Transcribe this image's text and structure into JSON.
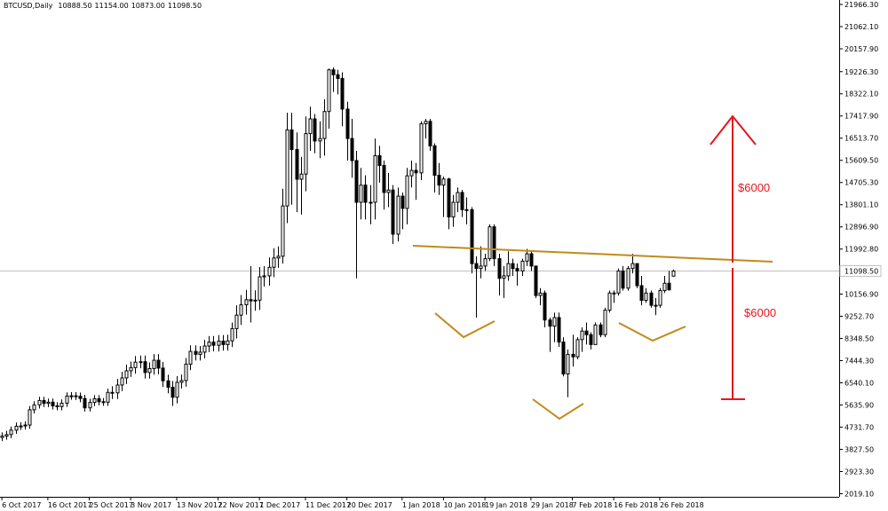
{
  "chart_data": {
    "type": "candlestick",
    "title": "BTCUSD,Daily",
    "last_bar_labels": [
      "10888.50",
      "11154.00",
      "10873.00",
      "11098.50"
    ],
    "ohlc": [
      [
        4220,
        4460,
        4070,
        4310
      ],
      [
        4310,
        4520,
        4160,
        4370
      ],
      [
        4370,
        4580,
        4220,
        4430
      ],
      [
        4430,
        4760,
        4280,
        4610
      ],
      [
        4610,
        4920,
        4460,
        4770
      ],
      [
        4770,
        4930,
        4620,
        4780
      ],
      [
        4780,
        4970,
        4630,
        4820
      ],
      [
        4820,
        5590,
        4670,
        5440
      ],
      [
        5440,
        5790,
        5290,
        5640
      ],
      [
        5640,
        5970,
        5490,
        5820
      ],
      [
        5820,
        5970,
        5550,
        5700
      ],
      [
        5700,
        5900,
        5550,
        5750
      ],
      [
        5750,
        5900,
        5450,
        5600
      ],
      [
        5600,
        5750,
        5420,
        5570
      ],
      [
        5570,
        5860,
        5420,
        5710
      ],
      [
        5710,
        6150,
        5560,
        6000
      ],
      [
        6000,
        6160,
        5850,
        6010
      ],
      [
        6010,
        6160,
        5840,
        5990
      ],
      [
        5990,
        6140,
        5750,
        5900
      ],
      [
        5900,
        6050,
        5370,
        5520
      ],
      [
        5520,
        5890,
        5370,
        5740
      ],
      [
        5740,
        6040,
        5590,
        5890
      ],
      [
        5890,
        6040,
        5620,
        5770
      ],
      [
        5770,
        5920,
        5600,
        5750
      ],
      [
        5750,
        6300,
        5600,
        6150
      ],
      [
        6150,
        6400,
        5880,
        6130
      ],
      [
        6130,
        6700,
        5880,
        6450
      ],
      [
        6450,
        6990,
        6200,
        6740
      ],
      [
        6740,
        7280,
        6490,
        7030
      ],
      [
        7030,
        7410,
        6780,
        7160
      ],
      [
        7160,
        7630,
        6910,
        7380
      ],
      [
        7380,
        7650,
        7130,
        7400
      ],
      [
        7400,
        7650,
        6710,
        6960
      ],
      [
        6960,
        7370,
        6710,
        7120
      ],
      [
        7120,
        7710,
        6870,
        7460
      ],
      [
        7460,
        7710,
        6890,
        7140
      ],
      [
        7140,
        7390,
        6370,
        6620
      ],
      [
        6620,
        6870,
        6110,
        6360
      ],
      [
        6360,
        6610,
        5600,
        5950
      ],
      [
        5950,
        6810,
        5700,
        6560
      ],
      [
        6560,
        6880,
        6310,
        6630
      ],
      [
        6630,
        7550,
        6380,
        7300
      ],
      [
        7300,
        8070,
        7050,
        7820
      ],
      [
        7820,
        8070,
        7450,
        7700
      ],
      [
        7700,
        8040,
        7450,
        7790
      ],
      [
        7790,
        8290,
        7540,
        8040
      ],
      [
        8040,
        8450,
        7790,
        8200
      ],
      [
        8200,
        8450,
        7820,
        8070
      ],
      [
        8070,
        8490,
        7820,
        8240
      ],
      [
        8240,
        8490,
        7850,
        8100
      ],
      [
        8100,
        8500,
        7850,
        8250
      ],
      [
        8250,
        9000,
        8000,
        8750
      ],
      [
        8750,
        9700,
        8350,
        9300
      ],
      [
        9300,
        10120,
        8900,
        9720
      ],
      [
        9720,
        10330,
        9320,
        9930
      ],
      [
        9930,
        11300,
        9000,
        9880
      ],
      [
        9880,
        10310,
        9480,
        9910
      ],
      [
        9910,
        11260,
        9510,
        10860
      ],
      [
        10860,
        11300,
        10460,
        10900
      ],
      [
        10900,
        11650,
        10500,
        11250
      ],
      [
        11250,
        12030,
        10850,
        11630
      ],
      [
        11630,
        12100,
        11230,
        11700
      ],
      [
        11700,
        14450,
        11400,
        13750
      ],
      [
        13750,
        17550,
        13050,
        16850
      ],
      [
        16850,
        17550,
        13800,
        16050
      ],
      [
        16050,
        16750,
        13500,
        14840
      ],
      [
        14840,
        15750,
        13400,
        15050
      ],
      [
        15050,
        17400,
        14350,
        16700
      ],
      [
        16700,
        17800,
        16000,
        17300
      ],
      [
        17300,
        17500,
        15900,
        16400
      ],
      [
        16400,
        17200,
        15700,
        16500
      ],
      [
        16500,
        18100,
        15800,
        17600
      ],
      [
        17600,
        19350,
        16900,
        19300
      ],
      [
        19300,
        19400,
        18400,
        19100
      ],
      [
        19100,
        19300,
        18300,
        18950
      ],
      [
        18950,
        19200,
        17000,
        17700
      ],
      [
        17700,
        18000,
        15600,
        16500
      ],
      [
        16500,
        17300,
        14900,
        15600
      ],
      [
        15600,
        16000,
        10800,
        13900
      ],
      [
        13900,
        15300,
        13200,
        14600
      ],
      [
        14600,
        15000,
        13200,
        13900
      ],
      [
        13900,
        14600,
        13000,
        13900
      ],
      [
        13900,
        16500,
        13200,
        15800
      ],
      [
        15800,
        16200,
        14700,
        15400
      ],
      [
        15400,
        15600,
        13600,
        14300
      ],
      [
        14300,
        15100,
        13700,
        14400
      ],
      [
        14400,
        14600,
        12200,
        12600
      ],
      [
        12600,
        14500,
        12300,
        14150
      ],
      [
        14150,
        14300,
        12800,
        13650
      ],
      [
        13650,
        15300,
        13000,
        14980
      ],
      [
        14980,
        15600,
        14500,
        15200
      ],
      [
        15200,
        15500,
        14000,
        15100
      ],
      [
        15100,
        17200,
        14800,
        17100
      ],
      [
        17100,
        17300,
        16500,
        17200
      ],
      [
        17200,
        17300,
        16000,
        16200
      ],
      [
        16200,
        16300,
        14300,
        15000
      ],
      [
        15000,
        15500,
        14200,
        14600
      ],
      [
        14600,
        14950,
        13300,
        14850
      ],
      [
        14850,
        14900,
        12800,
        13300
      ],
      [
        13300,
        14200,
        12900,
        13900
      ],
      [
        13900,
        14500,
        13500,
        14300
      ],
      [
        14300,
        14400,
        13300,
        13600
      ],
      [
        13600,
        14100,
        13000,
        13600
      ],
      [
        13600,
        13700,
        11000,
        11400
      ],
      [
        11400,
        11700,
        9200,
        11200
      ],
      [
        11200,
        12100,
        10800,
        11300
      ],
      [
        11300,
        11800,
        11100,
        11600
      ],
      [
        11600,
        13000,
        11500,
        12900
      ],
      [
        12900,
        13000,
        11300,
        11600
      ],
      [
        11600,
        11800,
        10100,
        10800
      ],
      [
        10800,
        11300,
        10000,
        10900
      ],
      [
        10900,
        11900,
        10700,
        11400
      ],
      [
        11400,
        11600,
        10900,
        11200
      ],
      [
        11200,
        11400,
        10500,
        11100
      ],
      [
        11100,
        11600,
        10900,
        11500
      ],
      [
        11500,
        12000,
        11300,
        11800
      ],
      [
        11800,
        11900,
        11100,
        11300
      ],
      [
        11300,
        11300,
        10000,
        10100
      ],
      [
        10100,
        10400,
        9700,
        10200
      ],
      [
        10200,
        10300,
        8800,
        9100
      ],
      [
        9100,
        9200,
        7800,
        8850
      ],
      [
        8850,
        9400,
        8200,
        9200
      ],
      [
        9200,
        9400,
        8000,
        8200
      ],
      [
        8200,
        8400,
        6800,
        6900
      ],
      [
        6900,
        7900,
        5950,
        7700
      ],
      [
        7700,
        8500,
        7200,
        7600
      ],
      [
        7600,
        8400,
        7500,
        8300
      ],
      [
        8300,
        8800,
        7800,
        8650
      ],
      [
        8650,
        9000,
        8100,
        8500
      ],
      [
        8500,
        8600,
        7900,
        8100
      ],
      [
        8100,
        9000,
        8100,
        8900
      ],
      [
        8900,
        9000,
        8400,
        8500
      ],
      [
        8500,
        9600,
        8400,
        9500
      ],
      [
        9500,
        10300,
        9400,
        10200
      ],
      [
        10200,
        10300,
        9800,
        10200
      ],
      [
        10200,
        11200,
        10100,
        11100
      ],
      [
        11100,
        11300,
        10300,
        10400
      ],
      [
        10400,
        11300,
        10300,
        11200
      ],
      [
        11200,
        11800,
        11000,
        11400
      ],
      [
        11400,
        11400,
        10400,
        10500
      ],
      [
        10500,
        10900,
        9700,
        9900
      ],
      [
        9900,
        10400,
        9800,
        10200
      ],
      [
        10200,
        10300,
        9600,
        9700
      ],
      [
        9700,
        10000,
        9300,
        9700
      ],
      [
        9700,
        10400,
        9600,
        10300
      ],
      [
        10300,
        10900,
        10200,
        10600
      ],
      [
        10600,
        11100,
        10300,
        10330
      ],
      [
        10888.5,
        11154,
        10873,
        11098.5
      ]
    ],
    "xlim": [
      0.6,
      183
    ],
    "xticks": [
      {
        "value": 1,
        "label": "6 Oct 2017"
      },
      {
        "value": 11,
        "label": "16 Oct 2017"
      },
      {
        "value": 20,
        "label": "25 Oct 2017"
      },
      {
        "value": 29,
        "label": "3 Nov 2017"
      },
      {
        "value": 39,
        "label": "13 Nov 2017"
      },
      {
        "value": 48,
        "label": "22 Nov 2017"
      },
      {
        "value": 57,
        "label": "1 Dec 2017"
      },
      {
        "value": 67,
        "label": "11 Dec 2017"
      },
      {
        "value": 76,
        "label": "20 Dec 2017"
      },
      {
        "value": 88,
        "label": "1 Jan 2018"
      },
      {
        "value": 97,
        "label": "10 Jan 2018"
      },
      {
        "value": 106,
        "label": "19 Jan 2018"
      },
      {
        "value": 116,
        "label": "29 Jan 2018"
      },
      {
        "value": 125,
        "label": "7 Feb 2018"
      },
      {
        "value": 134,
        "label": "16 Feb 2018"
      },
      {
        "value": 144,
        "label": "26 Feb 2018"
      }
    ],
    "ylim": [
      1892,
      22147
    ],
    "yticks": [
      {
        "value": 21966.3,
        "label": "21966.30"
      },
      {
        "value": 21062.1,
        "label": "21062.10"
      },
      {
        "value": 20157.9,
        "label": "20157.90"
      },
      {
        "value": 19226.3,
        "label": "19226.30"
      },
      {
        "value": 18322.1,
        "label": "18322.10"
      },
      {
        "value": 17417.9,
        "label": "17417.90"
      },
      {
        "value": 16513.7,
        "label": "16513.70"
      },
      {
        "value": 15609.5,
        "label": "15609.50"
      },
      {
        "value": 14705.3,
        "label": "14705.30"
      },
      {
        "value": 13801.1,
        "label": "13801.10"
      },
      {
        "value": 12896.9,
        "label": "12896.90"
      },
      {
        "value": 11992.8,
        "label": "11992.80"
      },
      {
        "value": 10156.9,
        "label": "10156.90"
      },
      {
        "value": 9252.7,
        "label": "9252.70"
      },
      {
        "value": 8348.5,
        "label": "8348.50"
      },
      {
        "value": 7444.3,
        "label": "7444.30"
      },
      {
        "value": 6540.1,
        "label": "6540.10"
      },
      {
        "value": 5635.9,
        "label": "5635.90"
      },
      {
        "value": 4731.7,
        "label": "4731.70"
      },
      {
        "value": 3827.5,
        "label": "3827.50"
      },
      {
        "value": 2923.3,
        "label": "2923.30"
      },
      {
        "value": 2019.1,
        "label": "2019.10"
      }
    ],
    "current_price": {
      "value": 11098.5,
      "label": "11098.50"
    },
    "annotations": [
      "$6000",
      "$6000"
    ],
    "up_color": "#ffffff",
    "down_color": "#000000",
    "outline_color": "#000000"
  }
}
